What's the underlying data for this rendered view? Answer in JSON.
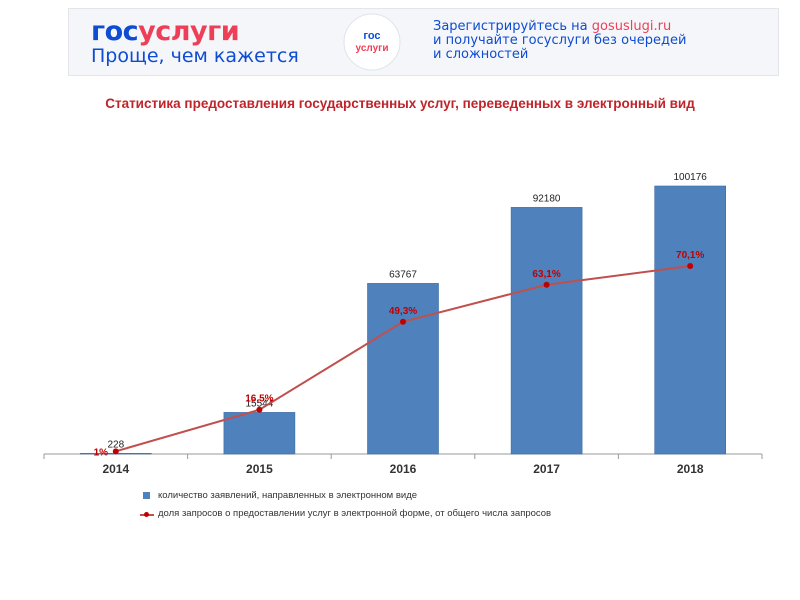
{
  "banner": {
    "logo_gos": "гос",
    "logo_uslugi": "услуги",
    "slogan": "Проще, чем кажется",
    "emblem_top": "гос",
    "emblem_bottom": "услуги",
    "promo_line1_prefix": "Зарегистрируйтесь на ",
    "promo_link": "gosuslugi.ru",
    "promo_line2": "и получайте госуслуги без очередей",
    "promo_line3": "и сложностей"
  },
  "colors": {
    "brand_blue": "#0d4cd3",
    "brand_red": "#ee3f58",
    "bar": "#4f81bd",
    "line": "#c0504d",
    "marker": "#c00000",
    "title": "#c0242b"
  },
  "chart_data": {
    "type": "bar",
    "title": "Статистика предоставления государственных услуг, переведенных в электронный вид",
    "categories": [
      "2014",
      "2015",
      "2016",
      "2017",
      "2018"
    ],
    "series": [
      {
        "name": "количество заявлений, направленных в электронном виде",
        "type": "bar",
        "values": [
          228,
          15544,
          63767,
          92180,
          100176
        ],
        "labels": [
          "228",
          "15544",
          "63767",
          "92180",
          "100176"
        ]
      },
      {
        "name": "доля запросов о предоставлении услуг в электронной форме, от общего числа запросов",
        "type": "line",
        "values": [
          1,
          16.5,
          49.3,
          63.1,
          70.1
        ],
        "labels": [
          "1%",
          "16,5%",
          "49,3%",
          "63,1%",
          "70,1%"
        ]
      }
    ],
    "bar_axis_range": [
      0,
      100176
    ],
    "line_axis_range": [
      0,
      100
    ],
    "legend_position": "bottom",
    "grid": false
  }
}
